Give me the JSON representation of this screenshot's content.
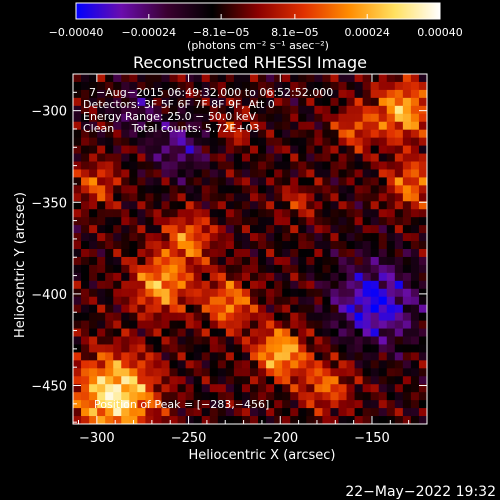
{
  "chart_data": {
    "type": "heatmap",
    "title": "Reconstructed RHESSI Image",
    "xlabel": "Heliocentric X (arcsec)",
    "ylabel": "Heliocentric Y (arcsec)",
    "xlim": [
      -313,
      -120
    ],
    "ylim": [
      -471,
      -280
    ],
    "xticks": [
      -300,
      -250,
      -200,
      -150
    ],
    "xtick_labels": [
      "−300",
      "−250",
      "−200",
      "−150"
    ],
    "yticks": [
      -300,
      -350,
      -400,
      -450
    ],
    "ytick_labels": [
      "−300",
      "−350",
      "−400",
      "−450"
    ],
    "grid": false,
    "colorbar": {
      "vmin": -0.0004,
      "vmax": 0.0004,
      "ticks": [
        -0.0004,
        -0.00024,
        -8.1e-05,
        8.1e-05,
        0.00024,
        0.0004
      ],
      "tick_labels": [
        "−0.00040",
        "−0.00024",
        "−8.1e−05",
        "8.1e−05",
        "0.00024",
        "0.00040"
      ],
      "unit_label": "(photons cm⁻² s⁻¹ asec⁻²)",
      "colors": [
        "#0000ff",
        "#6a0dad",
        "#3a0030",
        "#000000",
        "#8b0000",
        "#e03000",
        "#ff8c00",
        "#ffe060",
        "#ffffff"
      ]
    },
    "annotations": {
      "time_range": "7−Aug−2015 06:49:32.000 to 06:52:52.000",
      "detectors": "Detectors: 3F 5F 6F 7F 8F 9F, Att 0",
      "energy_range": "Energy Range: 25.0 − 50.0 keV",
      "clean_counts": "Clean     Total counts: 5.72E+03",
      "peak_position": "Position of Peak = [−283,−456]"
    },
    "peak": [
      -283,
      -456
    ],
    "hotspots": [
      {
        "x": -290,
        "y": -455,
        "r": 22,
        "amp": 0.00042
      },
      {
        "x": -265,
        "y": -395,
        "r": 16,
        "amp": 0.0003
      },
      {
        "x": -250,
        "y": -370,
        "r": 14,
        "amp": 0.00024
      },
      {
        "x": -228,
        "y": -405,
        "r": 14,
        "amp": 0.00026
      },
      {
        "x": -200,
        "y": -432,
        "r": 14,
        "amp": 0.00034
      },
      {
        "x": -175,
        "y": -450,
        "r": 14,
        "amp": 0.00022
      },
      {
        "x": -300,
        "y": -340,
        "r": 12,
        "amp": 0.0002
      },
      {
        "x": -133,
        "y": -300,
        "r": 16,
        "amp": 0.00032
      },
      {
        "x": -128,
        "y": -340,
        "r": 14,
        "amp": 0.00024
      },
      {
        "x": -160,
        "y": -310,
        "r": 12,
        "amp": 0.00018
      },
      {
        "x": -225,
        "y": -310,
        "r": 10,
        "amp": 0.00014
      },
      {
        "x": -190,
        "y": -350,
        "r": 10,
        "amp": 0.00014
      }
    ],
    "negative_regions": [
      {
        "x": -148,
        "y": -405,
        "r": 22,
        "amp": -0.0003
      },
      {
        "x": -255,
        "y": -320,
        "r": 16,
        "amp": -0.00018
      },
      {
        "x": -280,
        "y": -300,
        "r": 12,
        "amp": -0.00014
      }
    ]
  },
  "footer": {
    "timestamp": "22−May−2022 19:32"
  }
}
